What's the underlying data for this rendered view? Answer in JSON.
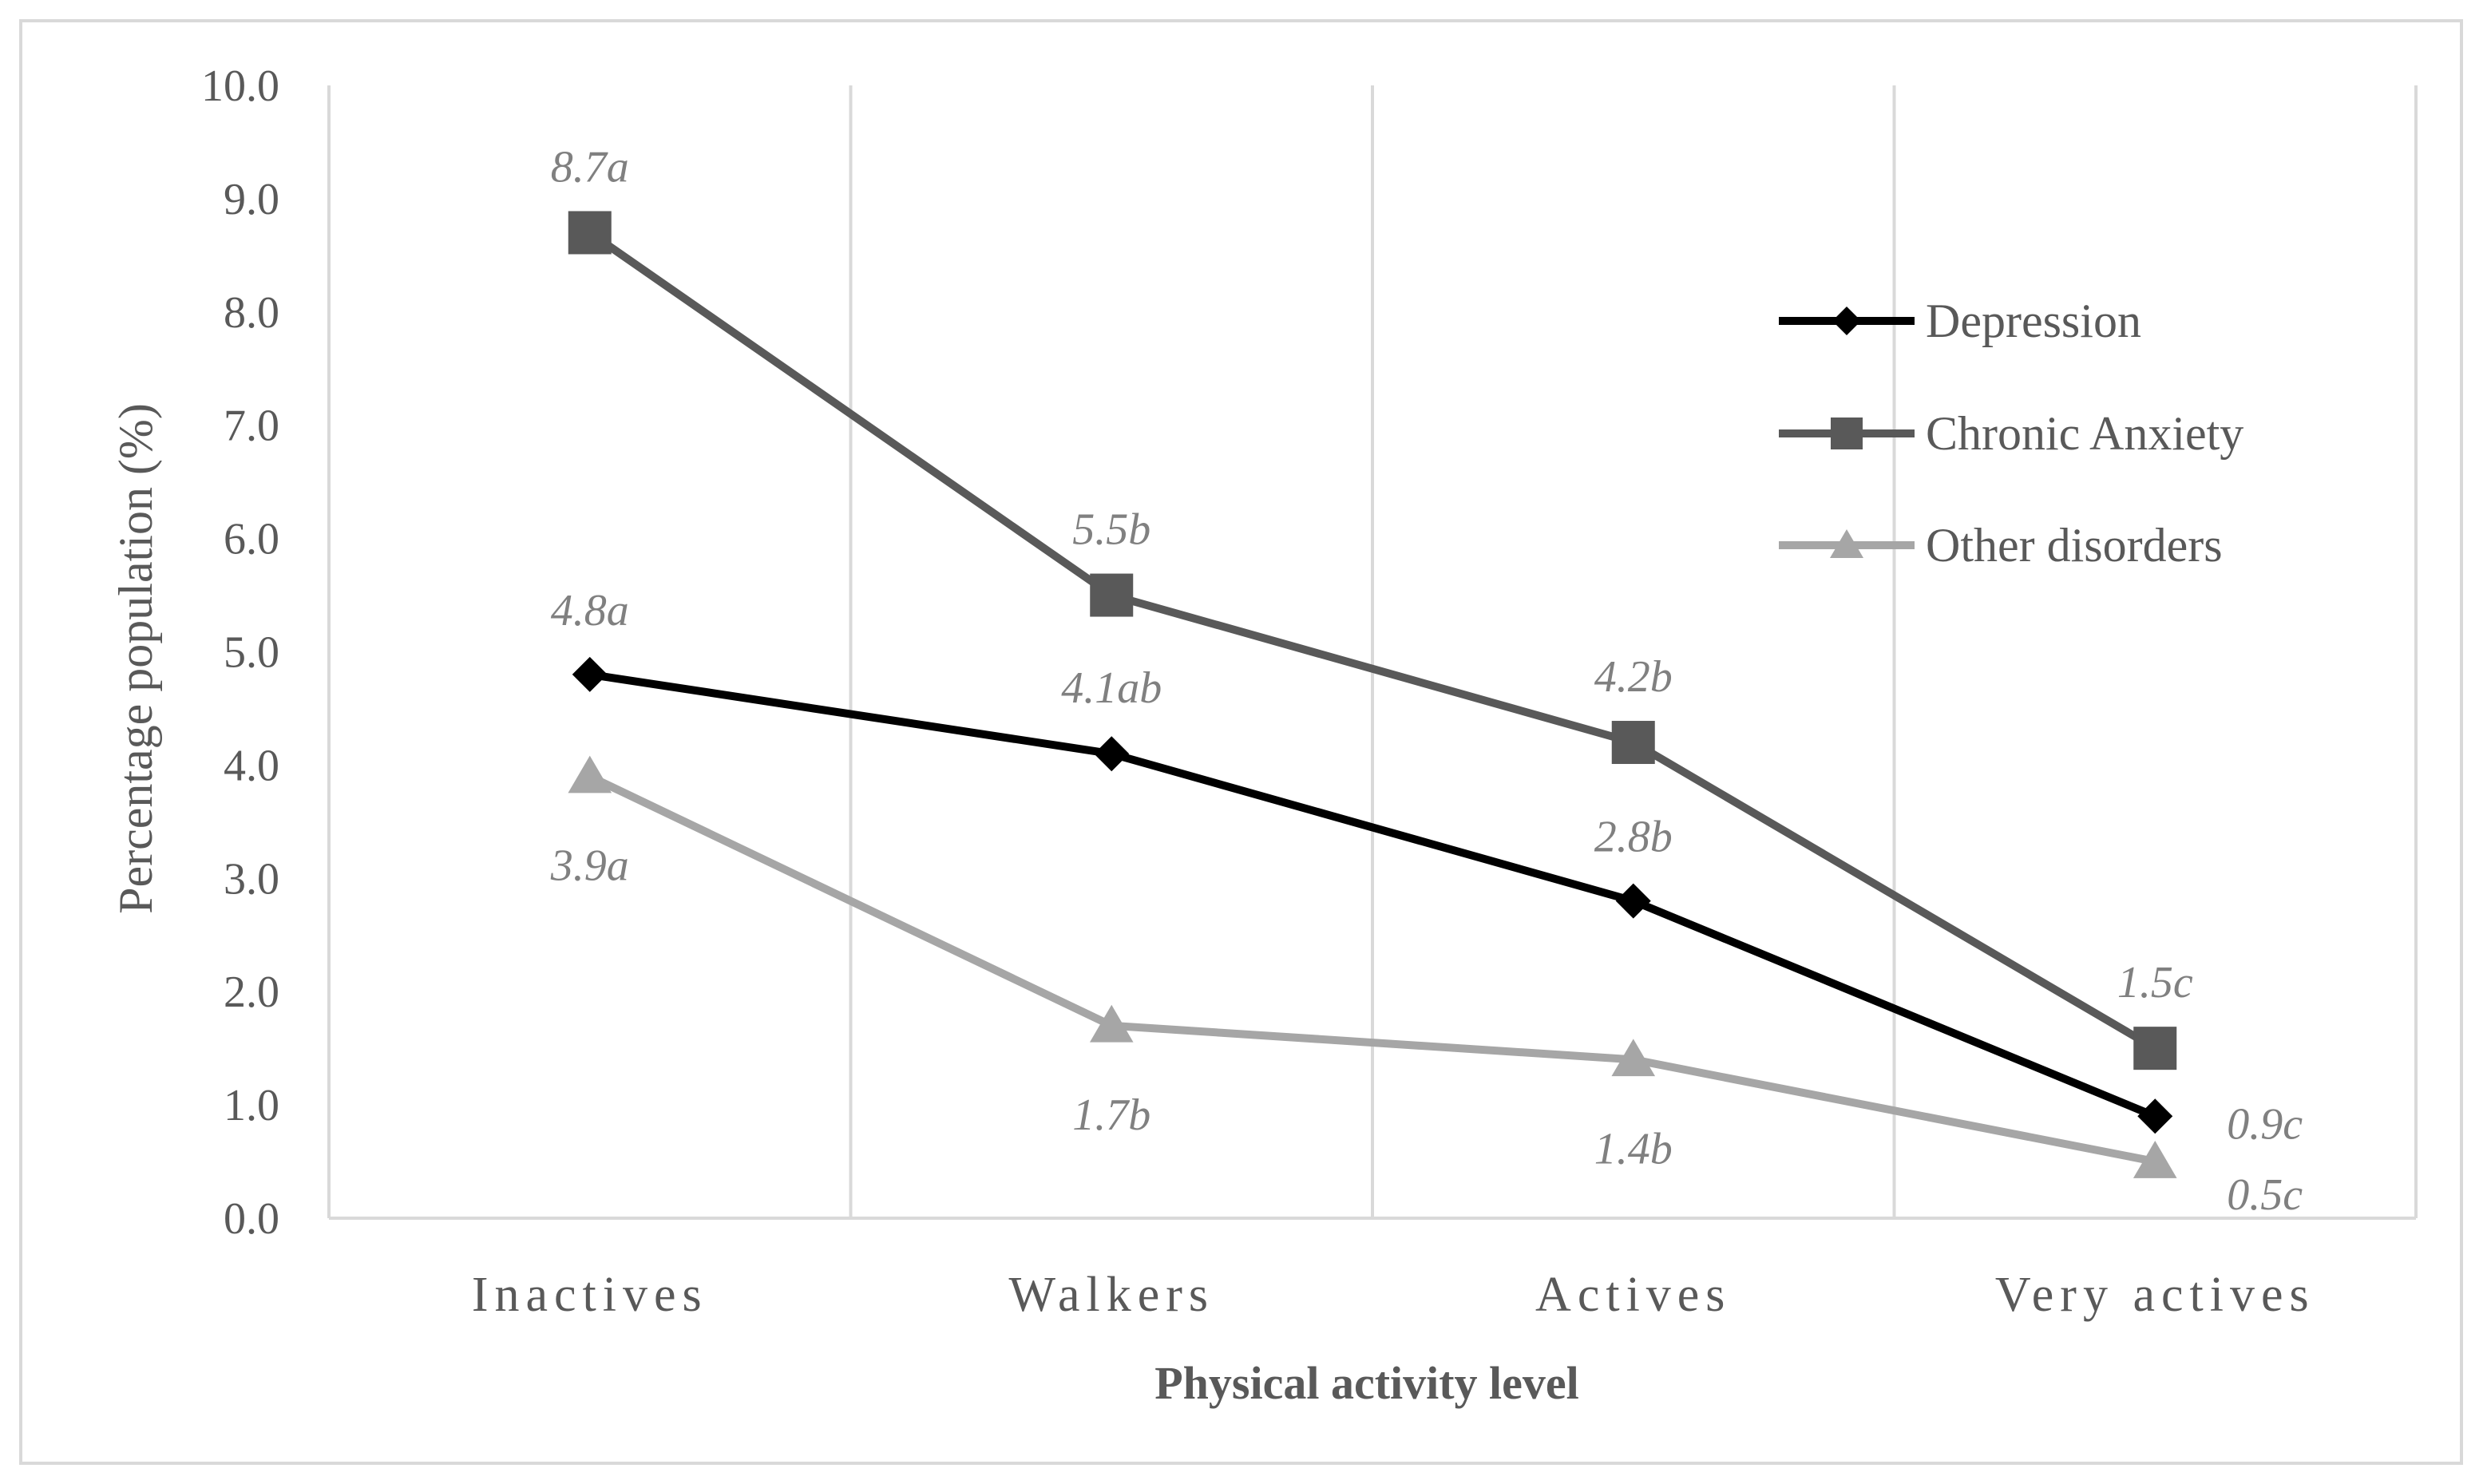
{
  "chart_data": {
    "type": "line",
    "title": "",
    "xlabel": "Physical activity level",
    "ylabel": "Percentage population (%)",
    "ylim": [
      0,
      10
    ],
    "y_ticks": [
      "0.0",
      "1.0",
      "2.0",
      "3.0",
      "4.0",
      "5.0",
      "6.0",
      "7.0",
      "8.0",
      "9.0",
      "10.0"
    ],
    "categories": [
      "Inactives",
      "Walkers",
      "Actives",
      "Very actives"
    ],
    "grid": "vertical category separators",
    "legend_position": "top-right",
    "series": [
      {
        "name": "Depression",
        "values": [
          4.8,
          4.1,
          2.8,
          0.9
        ],
        "labels": [
          "4.8a",
          "4.1ab",
          "2.8b",
          "0.9c"
        ],
        "color": "#000000",
        "marker": "diamond"
      },
      {
        "name": "Chronic Anxiety",
        "values": [
          8.7,
          5.5,
          4.2,
          1.5
        ],
        "labels": [
          "8.7a",
          "5.5b",
          "4.2b",
          "1.5c"
        ],
        "color": "#595959",
        "marker": "square"
      },
      {
        "name": "Other disorders",
        "values": [
          3.9,
          1.7,
          1.4,
          0.5
        ],
        "labels": [
          "3.9a",
          "1.7b",
          "1.4b",
          "0.5c"
        ],
        "color": "#a6a6a6",
        "marker": "triangle"
      }
    ]
  }
}
